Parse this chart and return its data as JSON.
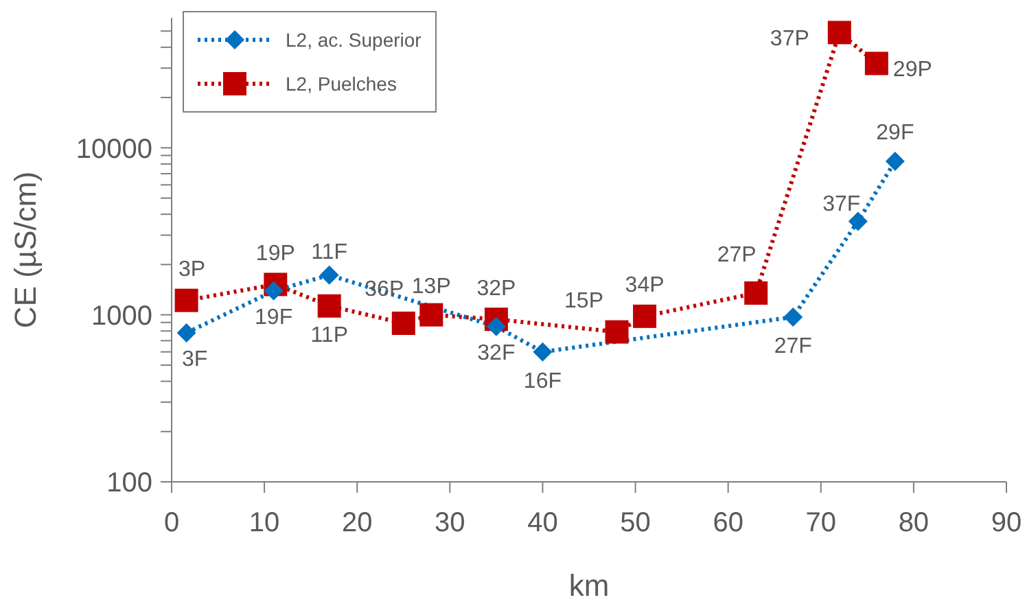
{
  "chart_data": {
    "type": "line",
    "xlabel": "km",
    "ylabel": "CE (µS/cm)",
    "log": "y",
    "grid": false,
    "legend": "top left",
    "line_style": "dotted",
    "xlim": [
      0,
      90
    ],
    "xticks": [
      0,
      10,
      20,
      30,
      40,
      50,
      60,
      70,
      80,
      90
    ],
    "ylim": [
      100,
      60000
    ],
    "yticks": [
      100,
      {
        "value": 200,
        "label": null
      },
      {
        "value": 300,
        "label": null
      },
      {
        "value": 400,
        "label": null
      },
      {
        "value": 500,
        "label": null
      },
      {
        "value": 600,
        "label": null
      },
      {
        "value": 700,
        "label": null
      },
      {
        "value": 800,
        "label": null
      },
      {
        "value": 900,
        "label": null
      },
      1000,
      {
        "value": 2000,
        "label": null
      },
      {
        "value": 3000,
        "label": null
      },
      {
        "value": 4000,
        "label": null
      },
      {
        "value": 5000,
        "label": null
      },
      {
        "value": 6000,
        "label": null
      },
      {
        "value": 7000,
        "label": null
      },
      {
        "value": 8000,
        "label": null
      },
      {
        "value": 9000,
        "label": null
      },
      10000,
      {
        "value": 20000,
        "label": null
      },
      {
        "value": 30000,
        "label": null
      },
      {
        "value": 40000,
        "label": null
      },
      {
        "value": 50000,
        "label": null
      }
    ],
    "series": [
      {
        "name": "L2, ac. Superior",
        "color": "#0070c0",
        "marker": "diamond",
        "x": [
          1.6,
          11,
          17,
          35,
          40,
          67,
          74,
          78
        ],
        "values": [
          780,
          1390,
          1730,
          850,
          600,
          970,
          3630,
          8300
        ]
      },
      {
        "name": "L2, Puelches",
        "color": "#c00000",
        "marker": "square",
        "x": [
          1.6,
          11.2,
          17,
          25,
          28,
          35,
          48,
          51,
          63,
          72,
          76
        ],
        "values": [
          1220,
          1520,
          1130,
          890,
          1000,
          940,
          790,
          980,
          1350,
          49000,
          32000
        ]
      }
    ],
    "annotations": [
      {
        "text": "3F",
        "x": 1.6,
        "y": 780
      },
      {
        "text": "19F",
        "x": 11,
        "y": 1390
      },
      {
        "text": "11F",
        "x": 17,
        "y": 1730
      },
      {
        "text": "32F",
        "x": 35,
        "y": 850
      },
      {
        "text": "16F",
        "x": 40,
        "y": 600
      },
      {
        "text": "27F",
        "x": 67,
        "y": 970
      },
      {
        "text": "37F",
        "x": 74,
        "y": 3630
      },
      {
        "text": "29F",
        "x": 78,
        "y": 8300
      },
      {
        "text": "3P",
        "x": 1.6,
        "y": 1220
      },
      {
        "text": "19P",
        "x": 11.2,
        "y": 1520
      },
      {
        "text": "11P",
        "x": 17,
        "y": 1130
      },
      {
        "text": "36P",
        "x": 25,
        "y": 890
      },
      {
        "text": "13P",
        "x": 28,
        "y": 1000
      },
      {
        "text": "32P",
        "x": 35,
        "y": 940
      },
      {
        "text": "15P",
        "x": 48,
        "y": 790
      },
      {
        "text": "34P",
        "x": 51,
        "y": 980
      },
      {
        "text": "27P",
        "x": 63,
        "y": 1350
      },
      {
        "text": "37P",
        "x": 72,
        "y": 49000
      },
      {
        "text": "29P",
        "x": 76,
        "y": 32000
      }
    ]
  }
}
